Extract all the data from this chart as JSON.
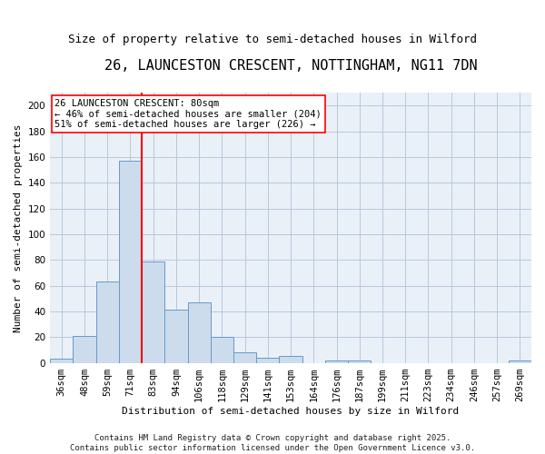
{
  "title": "26, LAUNCESTON CRESCENT, NOTTINGHAM, NG11 7DN",
  "subtitle": "Size of property relative to semi-detached houses in Wilford",
  "xlabel": "Distribution of semi-detached houses by size in Wilford",
  "ylabel": "Number of semi-detached properties",
  "categories": [
    "36sqm",
    "48sqm",
    "59sqm",
    "71sqm",
    "83sqm",
    "94sqm",
    "106sqm",
    "118sqm",
    "129sqm",
    "141sqm",
    "153sqm",
    "164sqm",
    "176sqm",
    "187sqm",
    "199sqm",
    "211sqm",
    "223sqm",
    "234sqm",
    "246sqm",
    "257sqm",
    "269sqm"
  ],
  "values": [
    3,
    21,
    63,
    157,
    79,
    41,
    47,
    20,
    8,
    4,
    5,
    0,
    2,
    2,
    0,
    0,
    0,
    0,
    0,
    0,
    2
  ],
  "bar_color": "#ccdcec",
  "bar_edge_color": "#6699cc",
  "ylim": [
    0,
    210
  ],
  "yticks": [
    0,
    20,
    40,
    60,
    80,
    100,
    120,
    140,
    160,
    180,
    200
  ],
  "vline_x": 3.5,
  "annotation_text": "26 LAUNCESTON CRESCENT: 80sqm\n← 46% of semi-detached houses are smaller (204)\n51% of semi-detached houses are larger (226) →",
  "footer_text": "Contains HM Land Registry data © Crown copyright and database right 2025.\nContains public sector information licensed under the Open Government Licence v3.0.",
  "background_color": "#eaf0f8",
  "grid_color": "#b8c8dc",
  "title_fontsize": 11,
  "subtitle_fontsize": 9,
  "axis_label_fontsize": 8,
  "tick_fontsize": 7.5,
  "footer_fontsize": 6.5,
  "ann_fontsize": 7.5
}
